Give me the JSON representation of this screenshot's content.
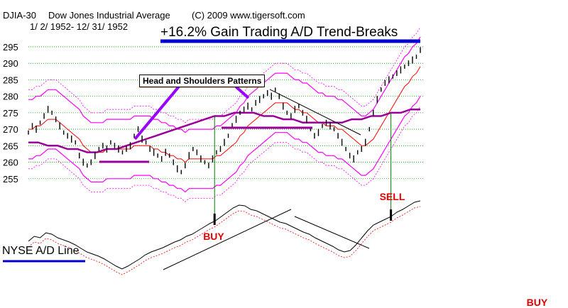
{
  "header": {
    "symbol": "DJIA-30",
    "name": "Dow Jones Industrial Average",
    "copyright": "(C) 2009 www.tigersoft.com",
    "date_range": "1/ 2/ 1952- 12/ 31/ 1952",
    "headline": "+16.2% Gain Trading A/D Trend-Breaks"
  },
  "annotations": {
    "patterns_label": "Head and Shoulders Patterns",
    "adline_label": "NYSE A/D Line"
  },
  "colors": {
    "price": "#000000",
    "envelope": "#ff00ff",
    "ma_short": "#ff0000",
    "ma_long": "#990099",
    "signal_line": "#008000",
    "signal_text": "#e00000",
    "headline_underline": "#0000cc",
    "pattern_pointer": "#9900ff",
    "label_underline": "#ff8800"
  },
  "chart_data": {
    "type": "line",
    "title": "Dow Jones Industrial Average",
    "ylim": [
      250,
      298
    ],
    "yticks": [
      "295",
      "290",
      "285",
      "280",
      "275",
      "270",
      "265",
      "260",
      "255"
    ],
    "ytick_values": [
      295,
      290,
      285,
      280,
      275,
      270,
      265,
      260,
      255
    ],
    "grid": true,
    "price": [
      269,
      271,
      270,
      272,
      274,
      276,
      275,
      273,
      271,
      269,
      268,
      267,
      266,
      262,
      260,
      259,
      260,
      262,
      264,
      265,
      264,
      266,
      265,
      264,
      263,
      264,
      265,
      268,
      270,
      267,
      266,
      264,
      263,
      262,
      261,
      263,
      262,
      260,
      258,
      257,
      259,
      262,
      264,
      263,
      261,
      260,
      259,
      261,
      263,
      264,
      266,
      268,
      271,
      273,
      275,
      276,
      277,
      276,
      278,
      279,
      280,
      281,
      280,
      282,
      280,
      277,
      275,
      274,
      276,
      277,
      275,
      273,
      270,
      268,
      269,
      271,
      272,
      271,
      270,
      268,
      266,
      264,
      262,
      261,
      263,
      264,
      266,
      270,
      275,
      279,
      282,
      284,
      285,
      286,
      287,
      288,
      289,
      290,
      291,
      292,
      294
    ],
    "ma_short": [
      270,
      270,
      271,
      271,
      272,
      273,
      273,
      273,
      272,
      271,
      270,
      269,
      268,
      267,
      265,
      264,
      263,
      263,
      263,
      263,
      264,
      264,
      264,
      264,
      264,
      264,
      264,
      265,
      265,
      265,
      265,
      265,
      264,
      264,
      263,
      263,
      262,
      262,
      261,
      261,
      260,
      261,
      261,
      261,
      261,
      261,
      261,
      261,
      262,
      262,
      263,
      264,
      265,
      266,
      268,
      269,
      271,
      272,
      273,
      274,
      275,
      276,
      277,
      278,
      278,
      278,
      278,
      277,
      276,
      276,
      275,
      275,
      274,
      273,
      272,
      272,
      271,
      271,
      271,
      270,
      270,
      269,
      268,
      267,
      266,
      265,
      265,
      266,
      267,
      269,
      271,
      273,
      275,
      277,
      279,
      281,
      283,
      284,
      286,
      287,
      289
    ],
    "ma_long": [
      266,
      266,
      265,
      265,
      264,
      264,
      263,
      263,
      264,
      264,
      265,
      266,
      267,
      268,
      269,
      270,
      271,
      272,
      273,
      274,
      274,
      275,
      275,
      275,
      274,
      274,
      273,
      273,
      272,
      272,
      272,
      272,
      272,
      273,
      273,
      274,
      274,
      275,
      275,
      276,
      276
    ],
    "adline": [
      0.45,
      0.52,
      0.5,
      0.57,
      0.55,
      0.5,
      0.47,
      0.44,
      0.4,
      0.35,
      0.3,
      0.27,
      0.24,
      0.2,
      0.15,
      0.1,
      0.06,
      0.1,
      0.15,
      0.2,
      0.26,
      0.3,
      0.33,
      0.36,
      0.4,
      0.44,
      0.47,
      0.52,
      0.55,
      0.6,
      0.65,
      0.7,
      0.74,
      0.8,
      0.86,
      0.92,
      0.96,
      0.95,
      0.9,
      0.88,
      0.84,
      0.8,
      0.76,
      0.72,
      0.7,
      0.66,
      0.62,
      0.58,
      0.55,
      0.5,
      0.46,
      0.42,
      0.38,
      0.33,
      0.3,
      0.32,
      0.4,
      0.5,
      0.6,
      0.68,
      0.72,
      0.76,
      0.8,
      0.86,
      0.9,
      0.95,
      1.0,
      1.02
    ],
    "signals": [
      {
        "label": "BUY",
        "index": 19,
        "side": "bottom"
      },
      {
        "label": "SELL",
        "index": 37,
        "side": "top"
      },
      {
        "label": "BUY",
        "index": 52,
        "side": "bottom"
      }
    ]
  }
}
